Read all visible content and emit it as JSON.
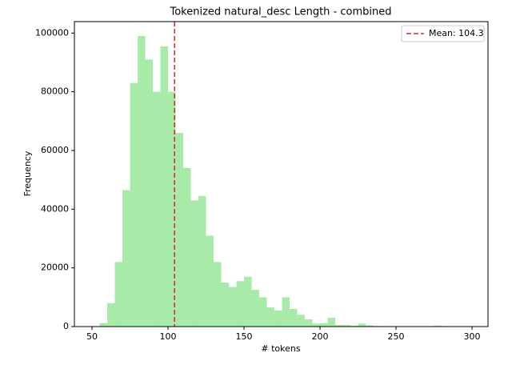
{
  "chart_data": {
    "type": "histogram",
    "title": "Tokenized natural_desc Length - combined",
    "x_label": "# tokens",
    "y_label": "Frequency",
    "bins": [
      55,
      60,
      65,
      70,
      75,
      80,
      85,
      90,
      95,
      100,
      105,
      110,
      115,
      120,
      125,
      130,
      135,
      140,
      145,
      150,
      155,
      160,
      165,
      170,
      175,
      180,
      185,
      190,
      195,
      200,
      205,
      210,
      215,
      220,
      225,
      230,
      235,
      240,
      245,
      250,
      255,
      260,
      265,
      270,
      275,
      280,
      285,
      290,
      295,
      300
    ],
    "values": [
      1200,
      8000,
      22000,
      46500,
      83000,
      99000,
      91000,
      80000,
      95500,
      80000,
      66000,
      54000,
      43000,
      44500,
      31000,
      22000,
      15000,
      13500,
      15500,
      17000,
      12500,
      10000,
      6500,
      5500,
      10000,
      6000,
      4000,
      2500,
      1000,
      1200,
      3000,
      600,
      600,
      300,
      1000,
      400,
      200,
      150,
      100,
      100,
      80,
      60,
      60,
      80,
      300,
      150,
      60,
      40,
      30
    ],
    "color": "#a8eba8",
    "mean_line": {
      "value": 104.3,
      "label": "Mean: 104.3",
      "color": "#d62728"
    },
    "legend_position": "upper right",
    "xlim": [
      38.4,
      310.5
    ],
    "xticks": [
      50,
      100,
      150,
      200,
      250,
      300
    ],
    "ylim": [
      0,
      103900
    ],
    "yticks": [
      0,
      20000,
      40000,
      60000,
      80000,
      100000
    ]
  }
}
